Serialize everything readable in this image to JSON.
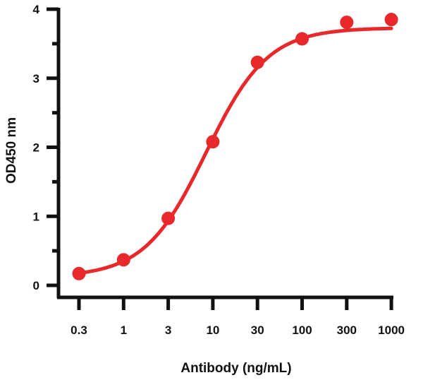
{
  "chart_data": {
    "type": "line",
    "title": "",
    "xlabel": "Antibody (ng/mL)",
    "ylabel": "OD450 nm",
    "x_scale": "log",
    "categories": [
      "0.3",
      "1",
      "3",
      "10",
      "30",
      "100",
      "300",
      "1000"
    ],
    "x": [
      0.3,
      1,
      3,
      10,
      30,
      100,
      300,
      1000
    ],
    "series": [
      {
        "values": [
          0.17,
          0.37,
          0.97,
          2.08,
          3.23,
          3.57,
          3.81,
          3.85
        ]
      }
    ],
    "fit": "sigmoidal curve",
    "ylim": [
      0,
      4
    ],
    "yticks": [
      "0",
      "1",
      "2",
      "3",
      "4"
    ],
    "grid": false,
    "legend": "none",
    "colors": {
      "series": "#e8282b",
      "axis": "#111111"
    }
  }
}
